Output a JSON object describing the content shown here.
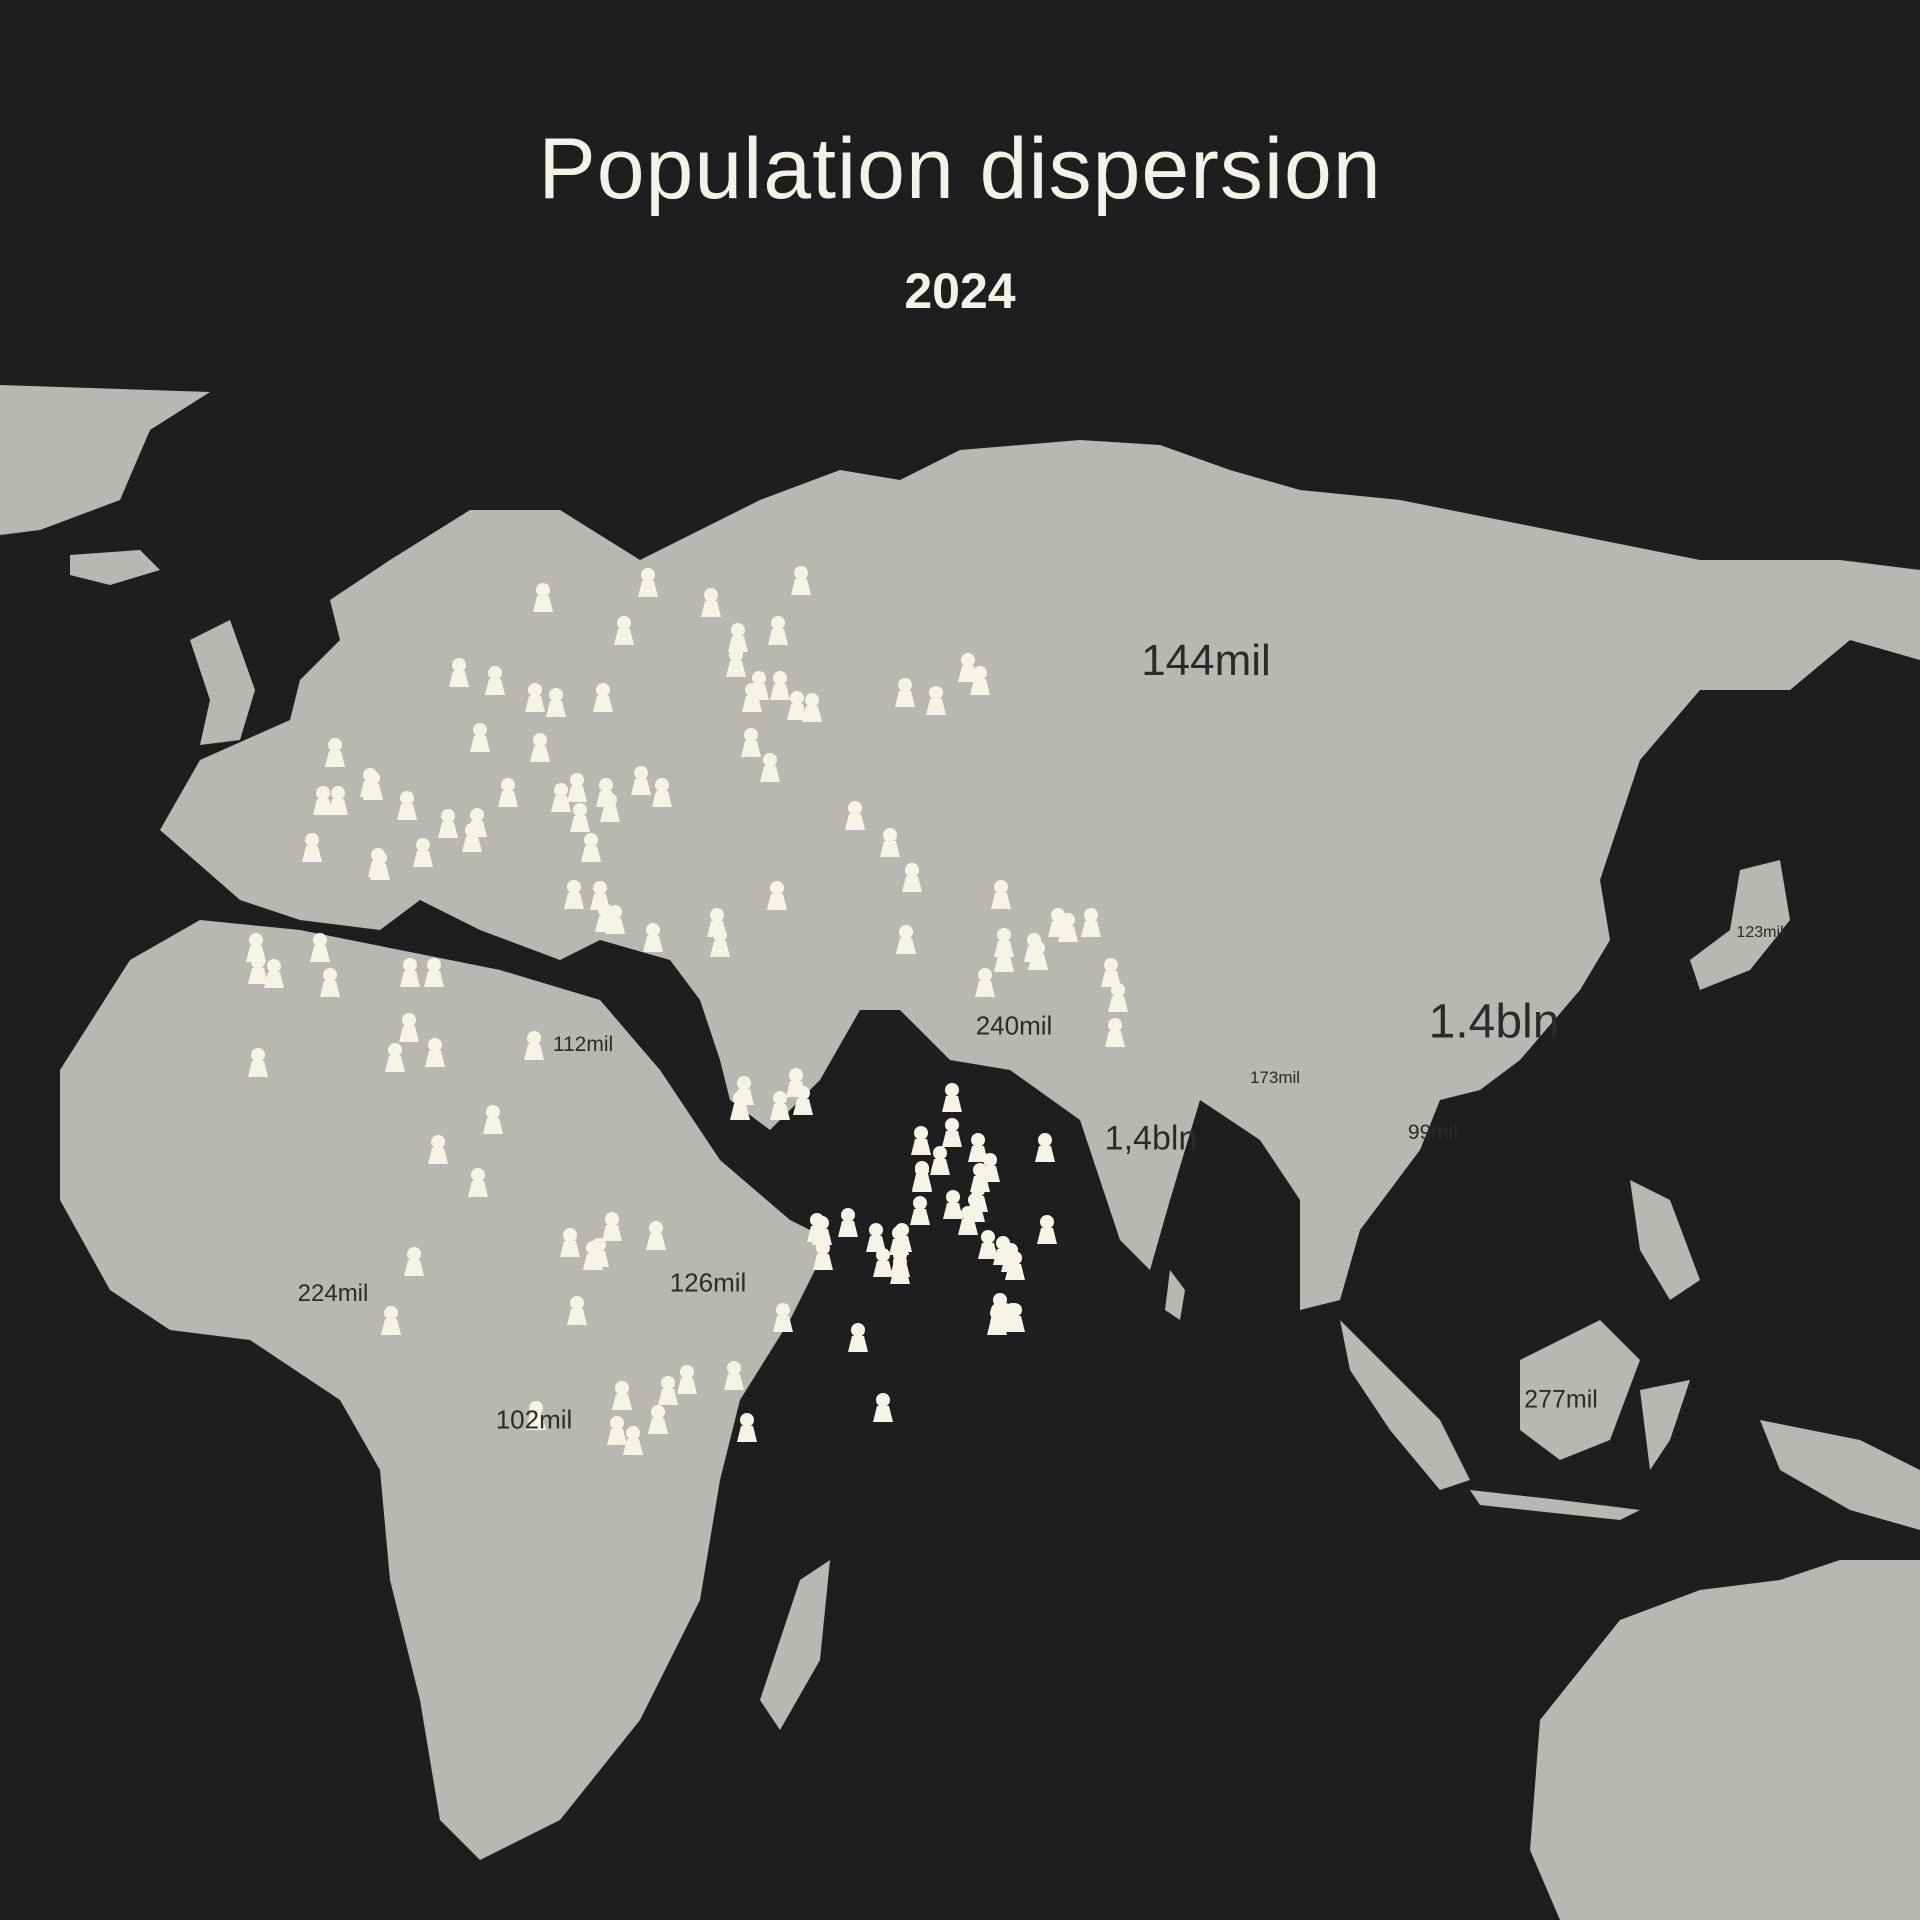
{
  "title": "Population dispersion",
  "subtitle": "2024",
  "colors": {
    "background": "#1e1e1e",
    "land": "#b9b7b1",
    "high": "#f28a2e",
    "mid": "#f5b535",
    "low": "#f6f3e6",
    "marker": "#f6f3e6"
  },
  "marker_icon": "person-pin-icon",
  "regions": [
    {
      "label": "144mil",
      "level": "low"
    },
    {
      "label": "1.4bln",
      "level": "high"
    },
    {
      "label": "1,4bln",
      "level": "high"
    },
    {
      "label": "240mil",
      "level": "mid"
    },
    {
      "label": "173mil",
      "level": "low"
    },
    {
      "label": "99mil",
      "level": "low"
    },
    {
      "label": "123mil",
      "level": "low"
    },
    {
      "label": "277mil",
      "level": "mid"
    },
    {
      "label": "112mil",
      "level": "low"
    },
    {
      "label": "126mil",
      "level": "low"
    },
    {
      "label": "102mil",
      "level": "low"
    },
    {
      "label": "224mil",
      "level": "mid"
    }
  ]
}
